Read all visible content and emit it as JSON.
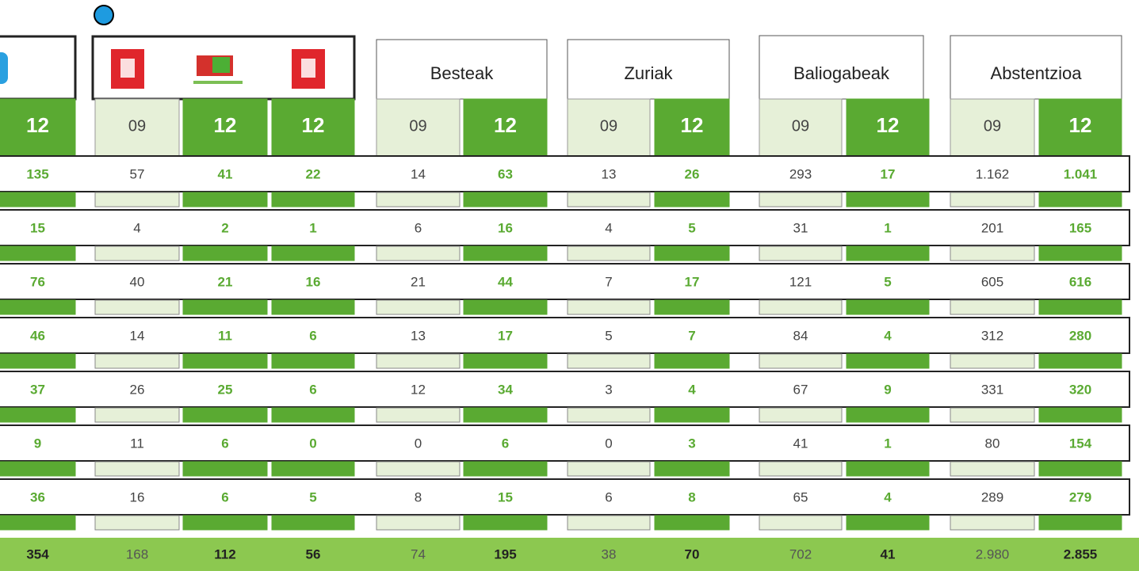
{
  "header": {
    "groups": [
      "Besteak",
      "Zuriak",
      "Baliogabeak",
      "Abstentzioa"
    ]
  },
  "columns": [
    "12",
    "09",
    "12",
    "12",
    "09",
    "12",
    "09",
    "12",
    "09",
    "12",
    "09",
    "12"
  ],
  "rows": [
    [
      "135",
      "57",
      "41",
      "22",
      "14",
      "63",
      "13",
      "26",
      "293",
      "17",
      "1.162",
      "1.041"
    ],
    [
      "15",
      "4",
      "2",
      "1",
      "6",
      "16",
      "4",
      "5",
      "31",
      "1",
      "201",
      "165"
    ],
    [
      "76",
      "40",
      "21",
      "16",
      "21",
      "44",
      "7",
      "17",
      "121",
      "5",
      "605",
      "616"
    ],
    [
      "46",
      "14",
      "11",
      "6",
      "13",
      "17",
      "5",
      "7",
      "84",
      "4",
      "312",
      "280"
    ],
    [
      "37",
      "26",
      "25",
      "6",
      "12",
      "34",
      "3",
      "4",
      "67",
      "9",
      "331",
      "320"
    ],
    [
      "9",
      "11",
      "6",
      "0",
      "0",
      "6",
      "0",
      "3",
      "41",
      "1",
      "80",
      "154"
    ],
    [
      "36",
      "16",
      "6",
      "5",
      "8",
      "15",
      "6",
      "8",
      "65",
      "4",
      "289",
      "279"
    ]
  ],
  "totals": [
    "354",
    "168",
    "112",
    "56",
    "74",
    "195",
    "38",
    "70",
    "702",
    "41",
    "2.980",
    "2.855"
  ]
}
